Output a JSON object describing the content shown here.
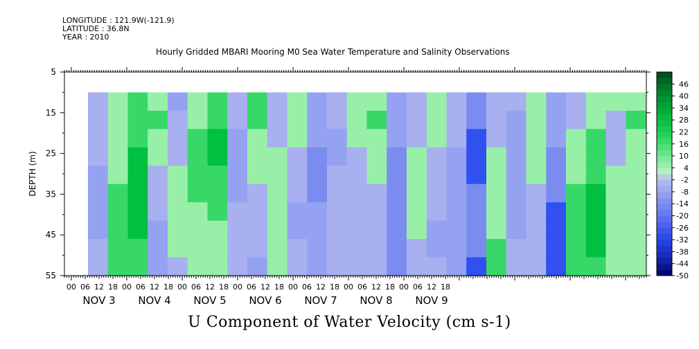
{
  "header": {
    "longitude": "LONGITUDE : 121.9W(-121.9)",
    "latitude": "LATITUDE : 36.8N",
    "year": "YEAR : 2010"
  },
  "title": "Hourly Gridded MBARI Mooring M0 Sea Water Temperature and Salinity Observations",
  "bottom_label": "U Component of Water Velocity (cm s-1)",
  "chart_data": {
    "type": "heatmap",
    "ylabel": "DEPTH (m)",
    "xlabel": "",
    "y_ticks": [
      5,
      15,
      25,
      35,
      45,
      55
    ],
    "ylim": [
      5,
      55
    ],
    "y_reversed": true,
    "data_depth_range": [
      10,
      55
    ],
    "x_hour_ticks": [
      "00",
      "06",
      "12",
      "18",
      "00",
      "06",
      "12",
      "18",
      "00",
      "06",
      "12",
      "18",
      "00",
      "06",
      "12",
      "18",
      "00",
      "06",
      "12",
      "18",
      "00",
      "06",
      "12",
      "18",
      "00",
      "06",
      "12",
      "18"
    ],
    "day_labels": [
      "NOV  3",
      "NOV  4",
      "NOV  5",
      "NOV  6",
      "NOV  7",
      "NOV  8",
      "NOV  9"
    ],
    "colorbar_labels": [
      "46",
      "40",
      "34",
      "28",
      "22",
      "16",
      "10",
      "4",
      "-2",
      "-8",
      "-14",
      "-20",
      "-26",
      "-32",
      "-38",
      "-44",
      "-50"
    ],
    "colorbar_range": [
      -50,
      52
    ],
    "colors": {
      "green_strong": "#00c040",
      "green_light": "#98f0a8",
      "blue_light": "#a8b0f0",
      "blue_mid": "#7b8cf0",
      "blue_strong": "#3050f0"
    },
    "u_by_time": [
      {
        "time": "Nov 3 04",
        "u": [
          -4,
          -4,
          -6,
          -6,
          -8,
          -10,
          -10,
          -8,
          -6,
          -6
        ]
      },
      {
        "time": "Nov 3 10",
        "u": [
          2,
          4,
          4,
          6,
          6,
          8,
          8,
          10,
          10,
          8
        ]
      },
      {
        "time": "Nov 3 16",
        "u": [
          8,
          10,
          12,
          14,
          14,
          16,
          16,
          14,
          12,
          10
        ]
      },
      {
        "time": "Nov 3 22",
        "u": [
          6,
          8,
          4,
          2,
          -2,
          -4,
          -6,
          -8,
          -8,
          -8
        ]
      },
      {
        "time": "Nov 4 04",
        "u": [
          -8,
          -6,
          -4,
          -2,
          2,
          4,
          6,
          4,
          2,
          -2
        ]
      },
      {
        "time": "Nov 4 10",
        "u": [
          4,
          6,
          8,
          10,
          10,
          8,
          6,
          4,
          2,
          2
        ]
      },
      {
        "time": "Nov 4 16",
        "u": [
          10,
          12,
          14,
          14,
          12,
          10,
          8,
          6,
          4,
          2
        ]
      },
      {
        "time": "Nov 4 22",
        "u": [
          -4,
          -6,
          -8,
          -10,
          -10,
          -8,
          -6,
          -6,
          -4,
          -4
        ]
      },
      {
        "time": "Nov 5 04",
        "u": [
          10,
          8,
          6,
          4,
          2,
          -2,
          -4,
          -6,
          -6,
          -8
        ]
      },
      {
        "time": "Nov 5 10",
        "u": [
          -2,
          -4,
          -2,
          2,
          4,
          4,
          2,
          2,
          4,
          6
        ]
      },
      {
        "time": "Nov 5 16",
        "u": [
          6,
          4,
          2,
          -2,
          -4,
          -6,
          -8,
          -8,
          -6,
          -6
        ]
      },
      {
        "time": "Nov 5 22",
        "u": [
          -10,
          -12,
          -12,
          -14,
          -14,
          -14,
          -12,
          -12,
          -10,
          -10
        ]
      },
      {
        "time": "Nov 6 04",
        "u": [
          -6,
          -6,
          -8,
          -8,
          -6,
          -4,
          -4,
          -2,
          -2,
          -2
        ]
      },
      {
        "time": "Nov 6 10",
        "u": [
          4,
          4,
          2,
          -2,
          -2,
          -4,
          -4,
          -6,
          -4,
          -2
        ]
      },
      {
        "time": "Nov 6 16",
        "u": [
          6,
          8,
          6,
          4,
          2,
          -2,
          -4,
          -4,
          -6,
          -6
        ]
      },
      {
        "time": "Nov 6 22",
        "u": [
          -8,
          -10,
          -12,
          -14,
          -16,
          -16,
          -18,
          -18,
          -18,
          -16
        ]
      },
      {
        "time": "Nov 7 04",
        "u": [
          -6,
          -4,
          -2,
          2,
          2,
          4,
          4,
          2,
          -2,
          -4
        ]
      },
      {
        "time": "Nov 7 10",
        "u": [
          4,
          4,
          2,
          -2,
          -4,
          -6,
          -6,
          -8,
          -8,
          -6
        ]
      },
      {
        "time": "Nov 7 16",
        "u": [
          -2,
          -4,
          -6,
          -8,
          -8,
          -10,
          -10,
          -12,
          -12,
          -12
        ]
      },
      {
        "time": "Nov 7 22",
        "u": [
          -14,
          -18,
          -20,
          -20,
          -20,
          -18,
          -18,
          -16,
          -18,
          -20
        ]
      },
      {
        "time": "Nov 8 04",
        "u": [
          -6,
          -4,
          -2,
          2,
          4,
          4,
          6,
          6,
          8,
          8
        ]
      },
      {
        "time": "Nov 8 10",
        "u": [
          -6,
          -8,
          -8,
          -8,
          -10,
          -10,
          -8,
          -8,
          -6,
          -6
        ]
      },
      {
        "time": "Nov 8 16",
        "u": [
          4,
          6,
          6,
          4,
          2,
          -2,
          -4,
          -6,
          -6,
          -4
        ]
      },
      {
        "time": "Nov 8 22",
        "u": [
          -8,
          -10,
          -12,
          -14,
          -16,
          -18,
          -20,
          -20,
          -22,
          -22
        ]
      },
      {
        "time": "Nov 9 04",
        "u": [
          -4,
          -2,
          2,
          4,
          6,
          8,
          10,
          12,
          12,
          10
        ]
      },
      {
        "time": "Nov 9 10",
        "u": [
          4,
          6,
          8,
          10,
          12,
          14,
          16,
          16,
          14,
          12
        ]
      },
      {
        "time": "Nov 9 16",
        "u": [
          2,
          -2,
          -4,
          -2,
          2,
          4,
          6,
          6,
          4,
          2
        ]
      },
      {
        "time": "Nov 9 22",
        "u": [
          6,
          8,
          6,
          4,
          2,
          2,
          4,
          6,
          4,
          2
        ]
      }
    ]
  }
}
